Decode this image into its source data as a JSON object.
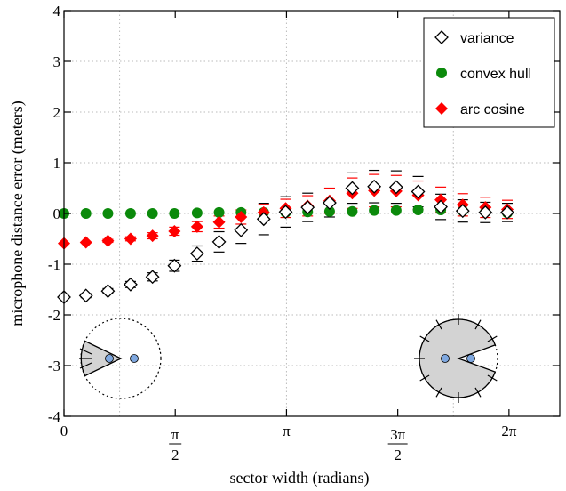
{
  "chart_data": {
    "type": "scatter",
    "title": "",
    "xlabel": "sector width (radians)",
    "ylabel": "microphone distance error (meters)",
    "xlim": [
      0,
      7.0
    ],
    "ylim": [
      -4,
      4
    ],
    "grid": true,
    "legend_placement": "top-right",
    "x_ticks": [
      {
        "value": 0,
        "label": "0",
        "den": ""
      },
      {
        "value": 1.5708,
        "label": "π",
        "den": "2"
      },
      {
        "value": 3.1416,
        "label": "π",
        "den": ""
      },
      {
        "value": 4.7124,
        "label": "3π",
        "den": "2"
      },
      {
        "value": 6.2832,
        "label": "2π",
        "den": ""
      }
    ],
    "y_ticks": [
      {
        "value": -4,
        "label": "-4"
      },
      {
        "value": -3,
        "label": "-3"
      },
      {
        "value": -2,
        "label": "-2"
      },
      {
        "value": -1,
        "label": "-1"
      },
      {
        "value": 0,
        "label": "0"
      },
      {
        "value": 1,
        "label": "1"
      },
      {
        "value": 2,
        "label": "2"
      },
      {
        "value": 3,
        "label": "3"
      },
      {
        "value": 4,
        "label": "4"
      }
    ],
    "grid_x": [
      0.785,
      3.1416,
      5.498
    ],
    "x": [
      0,
      0.31,
      0.62,
      0.94,
      1.25,
      1.56,
      1.88,
      2.19,
      2.5,
      2.82,
      3.13,
      3.44,
      3.75,
      4.07,
      4.38,
      4.69,
      5.0,
      5.32,
      5.63,
      5.95,
      6.26
    ],
    "series": [
      {
        "name": "variance",
        "marker": "diamond-open",
        "color": "#000000",
        "values": [
          -1.65,
          -1.62,
          -1.53,
          -1.4,
          -1.25,
          -1.03,
          -0.79,
          -0.56,
          -0.33,
          -0.11,
          0.03,
          0.12,
          0.21,
          0.5,
          0.53,
          0.52,
          0.43,
          0.13,
          0.05,
          0.02,
          0.02
        ],
        "err": [
          0.03,
          0.04,
          0.05,
          0.06,
          0.08,
          0.11,
          0.15,
          0.2,
          0.26,
          0.31,
          0.3,
          0.28,
          0.28,
          0.3,
          0.32,
          0.32,
          0.3,
          0.25,
          0.22,
          0.2,
          0.18
        ]
      },
      {
        "name": "convex hull",
        "marker": "circle",
        "color": "#0b8a0b",
        "values": [
          0.0,
          0.0,
          0.0,
          0.0,
          0.0,
          0.0,
          0.01,
          0.02,
          0.02,
          0.02,
          0.02,
          0.03,
          0.04,
          0.04,
          0.06,
          0.06,
          0.07,
          0.07,
          0.05,
          0.03,
          0.01
        ],
        "err": [
          0.0,
          0.0,
          0.0,
          0.0,
          0.0,
          0.0,
          0.0,
          0.0,
          0.0,
          0.0,
          0.0,
          0.0,
          0.0,
          0.0,
          0.0,
          0.0,
          0.0,
          0.0,
          0.0,
          0.0,
          0.0
        ]
      },
      {
        "name": "arc cosine",
        "marker": "diamond-filled",
        "color": "#ff0000",
        "values": [
          -0.59,
          -0.57,
          -0.54,
          -0.5,
          -0.44,
          -0.35,
          -0.26,
          -0.17,
          -0.07,
          0.02,
          0.1,
          0.15,
          0.25,
          0.4,
          0.45,
          0.44,
          0.36,
          0.27,
          0.17,
          0.12,
          0.08
        ],
        "err": [
          0.02,
          0.02,
          0.03,
          0.04,
          0.06,
          0.08,
          0.1,
          0.12,
          0.14,
          0.16,
          0.18,
          0.2,
          0.25,
          0.3,
          0.32,
          0.31,
          0.28,
          0.25,
          0.22,
          0.2,
          0.18
        ]
      }
    ]
  }
}
